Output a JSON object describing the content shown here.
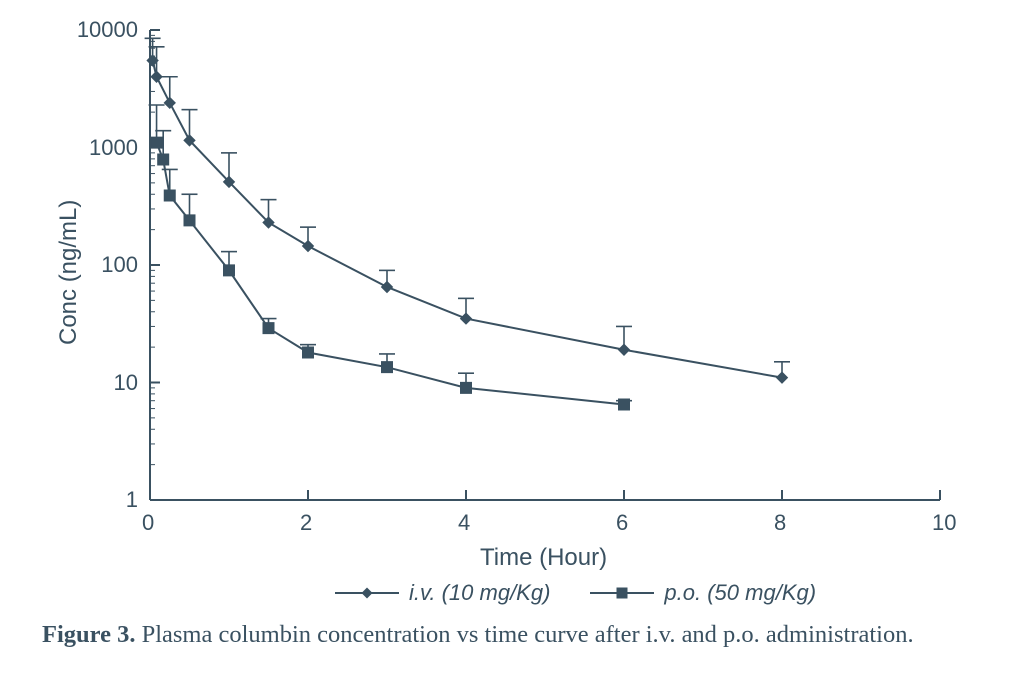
{
  "figure": {
    "caption_lead": "Figure 3.",
    "caption_rest": " Plasma columbin concentration vs time curve after i.v. and p.o. administration."
  },
  "chart": {
    "type": "line",
    "background_color": "#ffffff",
    "box_color": "#3a5161",
    "line_color": "#3a5161",
    "marker_fill": "#3a5161",
    "text_color": "#3a5161",
    "font_family_axes": "Arial",
    "tick_fontsize": 22,
    "axis_title_fontsize": 24,
    "legend_fontsize": 22,
    "line_width": 2,
    "marker_size": 11,
    "error_cap_halfwidth": 8,
    "x_axis": {
      "title": "Time (Hour)",
      "scale": "linear",
      "lim": [
        0,
        10
      ],
      "ticks": [
        0,
        2,
        4,
        6,
        8,
        10
      ],
      "tick_labels": [
        "0",
        "2",
        "4",
        "6",
        "8",
        "10"
      ],
      "tick_len": 10
    },
    "y_axis": {
      "title": "Conc (ng/mL)",
      "scale": "log",
      "lim": [
        1,
        10000
      ],
      "ticks": [
        1,
        10,
        100,
        1000,
        10000
      ],
      "tick_labels": [
        "1",
        "10",
        "100",
        "1000",
        "10000"
      ],
      "tick_len": 10
    },
    "series": [
      {
        "id": "iv",
        "label": "i.v. (10 mg/Kg)",
        "marker": "diamond",
        "x": [
          0.033,
          0.083,
          0.25,
          0.5,
          1.0,
          1.5,
          2.0,
          3.0,
          4.0,
          6.0,
          8.0
        ],
        "y": [
          5500,
          4000,
          2400,
          1150,
          510,
          230,
          145,
          65,
          35,
          19,
          11
        ],
        "err": [
          3000,
          3200,
          1600,
          950,
          390,
          130,
          65,
          25,
          17,
          11,
          4
        ]
      },
      {
        "id": "po",
        "label": "p.o. (50 mg/Kg)",
        "marker": "square",
        "x": [
          0.083,
          0.167,
          0.25,
          0.5,
          1.0,
          1.5,
          2.0,
          3.0,
          4.0,
          6.0
        ],
        "y": [
          1100,
          790,
          390,
          240,
          90,
          29,
          18,
          13.5,
          9,
          6.5
        ],
        "err": [
          1200,
          600,
          260,
          160,
          40,
          6,
          3,
          4,
          3,
          0.5
        ]
      }
    ],
    "legend_items": [
      {
        "marker": "diamond",
        "text": "i.v. (10 mg/Kg)"
      },
      {
        "marker": "square",
        "text": "p.o. (50 mg/Kg)"
      }
    ]
  }
}
